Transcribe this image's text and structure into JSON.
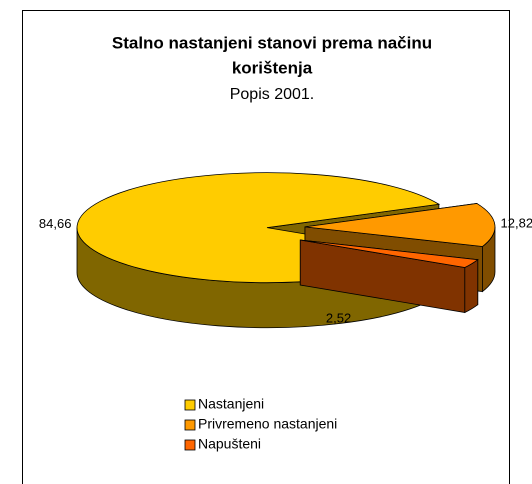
{
  "chart_data": {
    "type": "pie3d",
    "title": "Stalno nastanjeni stanovi prema načinu korištenja",
    "title_lines": [
      "Stalno nastanjeni stanovi prema načinu",
      "korištenja"
    ],
    "subtitle": "Popis 2001.",
    "categories": [
      "Nastanjeni",
      "Privremeno nastanjeni",
      "Napušteni"
    ],
    "values": [
      84.66,
      12.82,
      2.52
    ],
    "value_labels": [
      "84,66",
      "12,82",
      "2,52"
    ],
    "colors": [
      "#ffcc00",
      "#ff9900",
      "#ff6600"
    ],
    "legend": "bottom"
  }
}
